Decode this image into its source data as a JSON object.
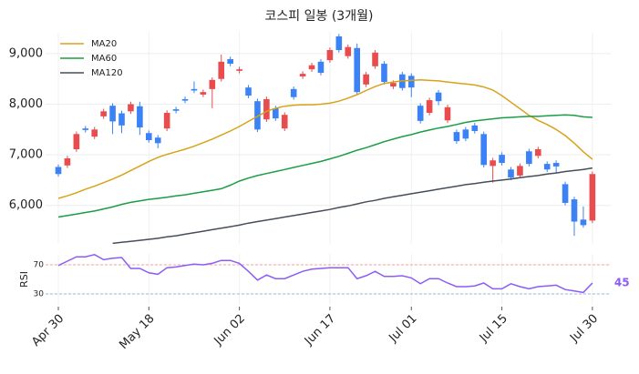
{
  "chart_data": [
    {
      "type": "candlestick",
      "title": "코스피 일봉 (3개월)",
      "categories": [
        "Apr 30",
        null,
        null,
        null,
        null,
        null,
        null,
        null,
        null,
        null,
        "May 18",
        null,
        null,
        null,
        null,
        null,
        null,
        null,
        null,
        null,
        "Jun 02",
        null,
        null,
        null,
        null,
        null,
        null,
        null,
        null,
        null,
        "Jun 17",
        null,
        null,
        null,
        null,
        null,
        null,
        null,
        null,
        "Jul 01",
        null,
        null,
        null,
        null,
        null,
        null,
        null,
        null,
        null,
        "Jul 15",
        null,
        null,
        null,
        null,
        null,
        null,
        null,
        null,
        null,
        "Jul 30"
      ],
      "open": [
        6760,
        6790,
        7110,
        7520,
        7360,
        7760,
        7970,
        7820,
        7860,
        7960,
        7430,
        7340,
        7520,
        7900,
        8100,
        8300,
        8190,
        8300,
        8500,
        8890,
        8660,
        8330,
        8060,
        7700,
        7920,
        7520,
        8300,
        8550,
        8690,
        8840,
        8870,
        9340,
        8950,
        9110,
        8390,
        8750,
        8800,
        8350,
        8590,
        8560,
        7970,
        7830,
        8230,
        7680,
        7450,
        7500,
        7580,
        7410,
        6780,
        7000,
        6710,
        6590,
        7070,
        6980,
        6820,
        6840,
        6420,
        6120,
        5720,
        5700
      ],
      "high": [
        6810,
        6980,
        7460,
        7570,
        7550,
        7910,
        8020,
        7870,
        8050,
        8050,
        7480,
        7390,
        7880,
        7950,
        8150,
        8450,
        8290,
        8530,
        8980,
        8940,
        8740,
        8380,
        8110,
        8150,
        7970,
        7840,
        8350,
        8650,
        8820,
        8890,
        9120,
        9390,
        9180,
        9200,
        8640,
        9070,
        8850,
        8470,
        8640,
        8610,
        8020,
        8130,
        8280,
        7990,
        7500,
        7550,
        7630,
        7460,
        6940,
        7050,
        6760,
        6830,
        7120,
        7160,
        6870,
        6890,
        6470,
        6170,
        5980,
        6670
      ],
      "low": [
        6570,
        6740,
        7060,
        7440,
        7310,
        7710,
        7410,
        7430,
        7810,
        7390,
        7240,
        7130,
        7470,
        7820,
        8020,
        8220,
        8140,
        7920,
        8450,
        8750,
        8610,
        8120,
        7450,
        7650,
        7670,
        7470,
        8090,
        8500,
        8640,
        8570,
        8820,
        9020,
        8900,
        8190,
        8340,
        8700,
        8390,
        8300,
        8270,
        8140,
        7620,
        7780,
        7980,
        7630,
        7220,
        7270,
        7420,
        6750,
        6450,
        6790,
        6500,
        6540,
        6770,
        6930,
        6660,
        6640,
        6000,
        5400,
        5560,
        5650
      ],
      "close": [
        6620,
        6930,
        7410,
        7490,
        7500,
        7860,
        7660,
        7580,
        8000,
        7540,
        7290,
        7230,
        7830,
        7870,
        8070,
        8270,
        8240,
        8480,
        8840,
        8800,
        8690,
        8170,
        7500,
        8100,
        7720,
        7790,
        8140,
        8600,
        8770,
        8620,
        9070,
        9070,
        9130,
        8240,
        8590,
        9020,
        8440,
        8420,
        8320,
        8330,
        7670,
        8080,
        8060,
        7940,
        7270,
        7320,
        7470,
        6800,
        6890,
        6840,
        6550,
        6780,
        6820,
        7110,
        6710,
        6770,
        6050,
        5680,
        5610,
        6620
      ],
      "up_color": "#e84c4c",
      "down_color": "#3b82f6",
      "series": [
        {
          "name": "MA20",
          "color": "#d9a21b",
          "values": [
            6140,
            6190,
            6250,
            6320,
            6380,
            6450,
            6520,
            6600,
            6690,
            6780,
            6870,
            6950,
            7010,
            7060,
            7110,
            7170,
            7240,
            7310,
            7390,
            7470,
            7560,
            7660,
            7760,
            7860,
            7920,
            7960,
            7980,
            7990,
            7990,
            8000,
            8020,
            8060,
            8120,
            8190,
            8270,
            8350,
            8410,
            8440,
            8460,
            8470,
            8480,
            8470,
            8460,
            8440,
            8420,
            8400,
            8380,
            8340,
            8280,
            8170,
            8040,
            7910,
            7780,
            7680,
            7600,
            7500,
            7380,
            7230,
            7060,
            6910
          ]
        },
        {
          "name": "MA60",
          "color": "#1a9e45",
          "values": [
            5770,
            5800,
            5830,
            5860,
            5890,
            5930,
            5970,
            6020,
            6060,
            6090,
            6120,
            6140,
            6160,
            6190,
            6210,
            6240,
            6270,
            6300,
            6330,
            6400,
            6480,
            6540,
            6590,
            6630,
            6670,
            6710,
            6750,
            6790,
            6830,
            6870,
            6920,
            6970,
            7030,
            7090,
            7140,
            7200,
            7260,
            7310,
            7360,
            7400,
            7450,
            7490,
            7530,
            7560,
            7600,
            7640,
            7670,
            7690,
            7710,
            7730,
            7740,
            7750,
            7760,
            7760,
            7770,
            7780,
            7790,
            7780,
            7750,
            7740
          ]
        },
        {
          "name": "MA120",
          "color": "#474d59",
          "values": [
            null,
            null,
            null,
            null,
            null,
            null,
            5250,
            5270,
            5290,
            5310,
            5330,
            5350,
            5380,
            5400,
            5430,
            5460,
            5490,
            5520,
            5550,
            5580,
            5610,
            5650,
            5680,
            5710,
            5740,
            5770,
            5800,
            5830,
            5860,
            5890,
            5920,
            5960,
            5990,
            6030,
            6070,
            6100,
            6140,
            6170,
            6200,
            6230,
            6260,
            6290,
            6320,
            6350,
            6380,
            6410,
            6430,
            6460,
            6480,
            6500,
            6520,
            6550,
            6570,
            6590,
            6620,
            6640,
            6670,
            6690,
            6710,
            6740
          ]
        }
      ],
      "ylim": [
        5240,
        9430
      ],
      "yticks": [
        {
          "value": 6000,
          "label": "6,000"
        },
        {
          "value": 7000,
          "label": "7,000"
        },
        {
          "value": 8000,
          "label": "8,000"
        },
        {
          "value": 9000,
          "label": "9,000"
        }
      ],
      "grid": true,
      "legend": "upper left"
    },
    {
      "type": "line",
      "ylabel": "RSI",
      "series": [
        {
          "name": "RSI",
          "color": "#8b5cf6",
          "values": [
            69,
            75,
            81,
            81,
            84,
            77,
            79,
            80,
            65,
            65,
            59,
            57,
            66,
            67,
            69,
            71,
            70,
            72,
            76,
            76,
            72,
            61,
            49,
            56,
            51,
            51,
            56,
            61,
            64,
            65,
            66,
            66,
            66,
            51,
            55,
            61,
            54,
            54,
            55,
            52,
            44,
            51,
            51,
            45,
            40,
            40,
            41,
            45,
            37,
            37,
            44,
            40,
            37,
            40,
            41,
            42,
            36,
            34,
            32,
            45
          ]
        }
      ],
      "ylim": [
        15,
        85
      ],
      "yticks": [
        30,
        70
      ],
      "hlines": [
        {
          "value": 70,
          "color": "#f08a8a"
        },
        {
          "value": 30,
          "color": "#7aa7dc"
        }
      ],
      "grid": true
    }
  ]
}
